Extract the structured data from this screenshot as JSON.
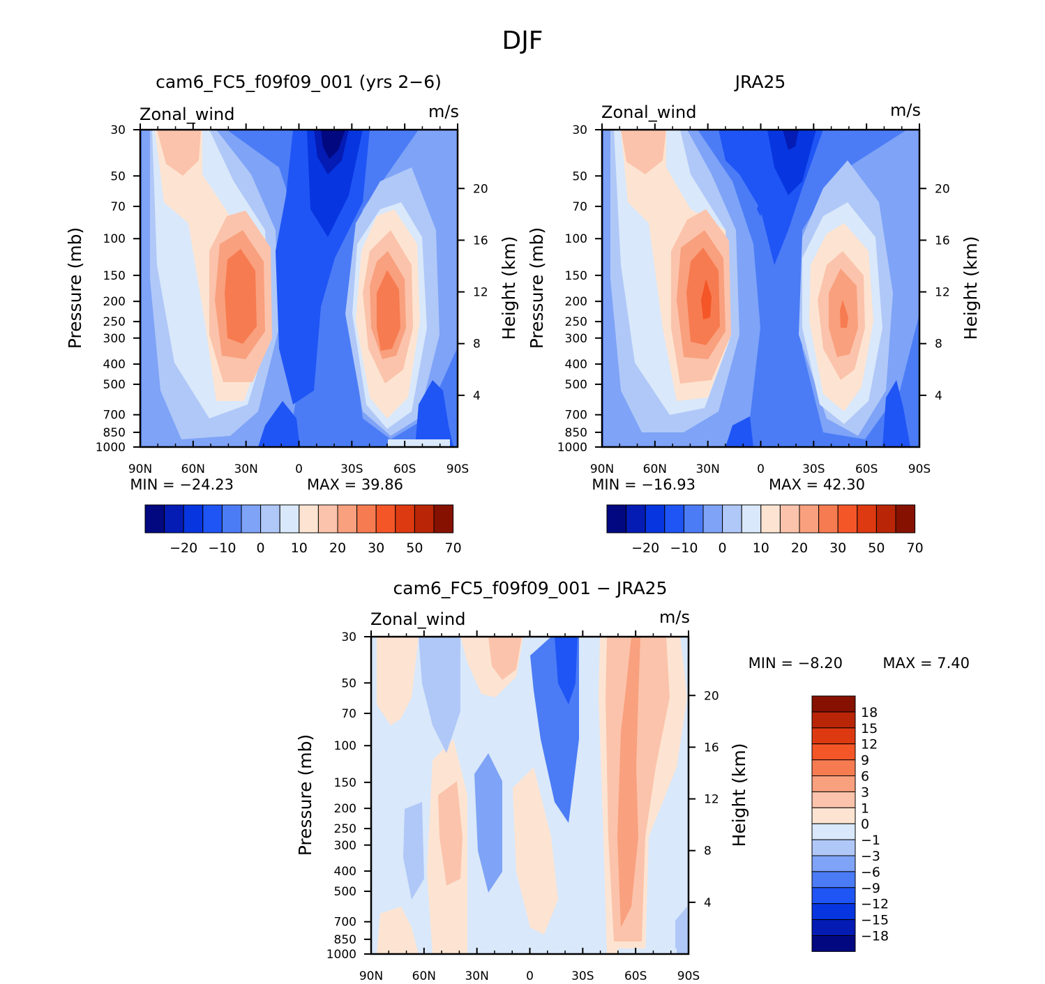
{
  "figure": {
    "title": "DJF"
  },
  "chart_data": [
    {
      "type": "heatmap",
      "title": "cam6_FC5_f09f09_001 (yrs 2-6)",
      "variable": "Zonal_wind",
      "units": "m/s",
      "ylabel": "Pressure (mb)",
      "ylabel_right": "Height (km)",
      "x_ticks": [
        "90N",
        "60N",
        "30N",
        "0",
        "30S",
        "60S",
        "90S"
      ],
      "p_ticks": [
        "30",
        "50",
        "70",
        "100",
        "150",
        "200",
        "250",
        "300",
        "400",
        "500",
        "700",
        "850",
        "1000"
      ],
      "h_ticks": [
        "20",
        "16",
        "12",
        "8",
        "4"
      ],
      "min_label": "MIN = -24.23",
      "max_label": "MAX = 39.86",
      "min": -24.23,
      "max": 39.86,
      "colorbar_labels": [
        "-20",
        "-10",
        "0",
        "10",
        "20",
        "30",
        "50",
        "70"
      ]
    },
    {
      "type": "heatmap",
      "title": "JRA25",
      "variable": "Zonal_wind",
      "units": "m/s",
      "ylabel": "Pressure (mb)",
      "ylabel_right": "Height (km)",
      "x_ticks": [
        "90N",
        "60N",
        "30N",
        "0",
        "30S",
        "60S",
        "90S"
      ],
      "p_ticks": [
        "30",
        "50",
        "70",
        "100",
        "150",
        "200",
        "250",
        "300",
        "400",
        "500",
        "700",
        "850",
        "1000"
      ],
      "h_ticks": [
        "20",
        "16",
        "12",
        "8",
        "4"
      ],
      "min_label": "MIN = -16.93",
      "max_label": "MAX = 42.30",
      "min": -16.93,
      "max": 42.3,
      "colorbar_labels": [
        "-20",
        "-10",
        "0",
        "10",
        "20",
        "30",
        "50",
        "70"
      ]
    },
    {
      "type": "heatmap",
      "title": "cam6_FC5_f09f09_001 - JRA25",
      "variable": "Zonal_wind",
      "units": "m/s",
      "ylabel": "Pressure (mb)",
      "ylabel_right": "Height (km)",
      "x_ticks": [
        "90N",
        "60N",
        "30N",
        "0",
        "30S",
        "60S",
        "90S"
      ],
      "p_ticks": [
        "30",
        "50",
        "70",
        "100",
        "150",
        "200",
        "250",
        "300",
        "400",
        "500",
        "700",
        "850",
        "1000"
      ],
      "h_ticks": [
        "20",
        "16",
        "12",
        "8",
        "4"
      ],
      "min_label": "MIN = -8.20",
      "max_label": "MAX = 7.40",
      "min": -8.2,
      "max": 7.4,
      "colorbar_labels": [
        "18",
        "15",
        "12",
        "9",
        "6",
        "3",
        "1",
        "0",
        "-1",
        "-3",
        "-6",
        "-9",
        "-12",
        "-15",
        "-18"
      ]
    }
  ],
  "colors": {
    "palette16": [
      "#02087f",
      "#041bb4",
      "#0735e0",
      "#1f55f5",
      "#4b7cf6",
      "#7ea3f7",
      "#b0c8f8",
      "#d9e8fa",
      "#fde4d2",
      "#fbc3ab",
      "#f9a07e",
      "#f77b50",
      "#f45628",
      "#de3a12",
      "#b92507",
      "#861100"
    ]
  }
}
